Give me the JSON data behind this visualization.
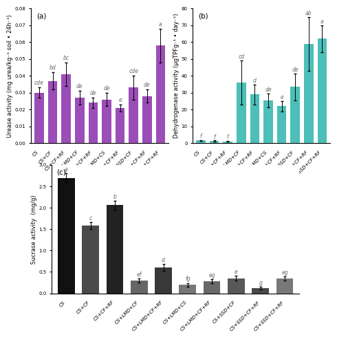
{
  "categories": [
    "CS",
    "CS+CF",
    "CS+CF+RF",
    "CS+LMD+CF",
    "CS+LMD+CF+RF",
    "CS+LMD+CS",
    "CS+LMD+CF+RF2",
    "CS+SSD+CF",
    "CS+SSD+CF+RF",
    "CS+SSD+CF+RF2"
  ],
  "xlabels": [
    "CS",
    "CS+CF",
    "CS+CF+RF",
    "CS+LMD+CF",
    "CS+LMD+CF+RF",
    "CS+LMD+CS",
    "CS+LMD+CF+RF",
    "CS+SSD+CF",
    "CS+SSD+CF+RF",
    "CS+SSD+CF+RF"
  ],
  "urease_values": [
    0.03,
    0.037,
    0.041,
    0.027,
    0.024,
    0.026,
    0.021,
    0.033,
    0.028,
    0.058
  ],
  "urease_errors": [
    0.003,
    0.005,
    0.007,
    0.004,
    0.003,
    0.004,
    0.002,
    0.007,
    0.004,
    0.01
  ],
  "urease_labels": [
    "cde",
    "bd",
    "bc",
    "de",
    "de",
    "de",
    "e",
    "cde",
    "de",
    "a"
  ],
  "urease_ylabel": "Urease activity (mg urea/kg⁻¹ soil • 24h⁻¹)",
  "urease_ylim": [
    0.0,
    0.08
  ],
  "urease_yticks": [
    0.0,
    0.01,
    0.02,
    0.03,
    0.04,
    0.05,
    0.06,
    0.07,
    0.08
  ],
  "urease_color": "#9B4EB8",
  "dehyd_values": [
    1.5,
    1.2,
    1.0,
    36.0,
    29.0,
    25.5,
    22.0,
    33.5,
    59.0,
    62.0
  ],
  "dehyd_errors": [
    0.3,
    0.3,
    0.3,
    13.0,
    6.0,
    4.0,
    3.0,
    8.0,
    16.0,
    8.0
  ],
  "dehyd_labels": [
    "f",
    "f",
    "f",
    "cd",
    "d",
    "de",
    "e",
    "de",
    "ab",
    "a"
  ],
  "dehyd_ylabel": "Dehydrogenase activity (μgTPFg⁻¹ • day⁻¹)",
  "dehyd_ylim": [
    0,
    80
  ],
  "dehyd_yticks": [
    0,
    10,
    20,
    30,
    40,
    50,
    60,
    70,
    80
  ],
  "dehyd_color": "#4BBFB8",
  "sucrase_values": [
    2.7,
    1.58,
    2.06,
    0.3,
    0.6,
    0.2,
    0.28,
    0.35,
    0.12,
    0.34
  ],
  "sucrase_errors": [
    0.1,
    0.08,
    0.1,
    0.05,
    0.08,
    0.04,
    0.05,
    0.06,
    0.03,
    0.05
  ],
  "sucrase_labels": [
    "a",
    "c",
    "b",
    "ef",
    "d",
    "fg",
    "eg",
    "e",
    "g",
    "eg"
  ],
  "sucrase_ylabel": "Sucrase activity  (mg/g)",
  "sucrase_ylim": [
    0.0,
    3.0
  ],
  "sucrase_yticks": [
    0.0,
    0.5,
    1.0,
    1.5,
    2.0,
    2.5,
    3.0
  ],
  "sucrase_gray_colors": [
    "#111111",
    "#4a4a4a",
    "#222222",
    "#666666",
    "#383838",
    "#777777",
    "#686868",
    "#585858",
    "#484848",
    "#787878"
  ],
  "tick_fontsize": 5.0,
  "label_fontsize": 6.0,
  "annot_fontsize": 5.5,
  "panel_label_fontsize": 7.5
}
